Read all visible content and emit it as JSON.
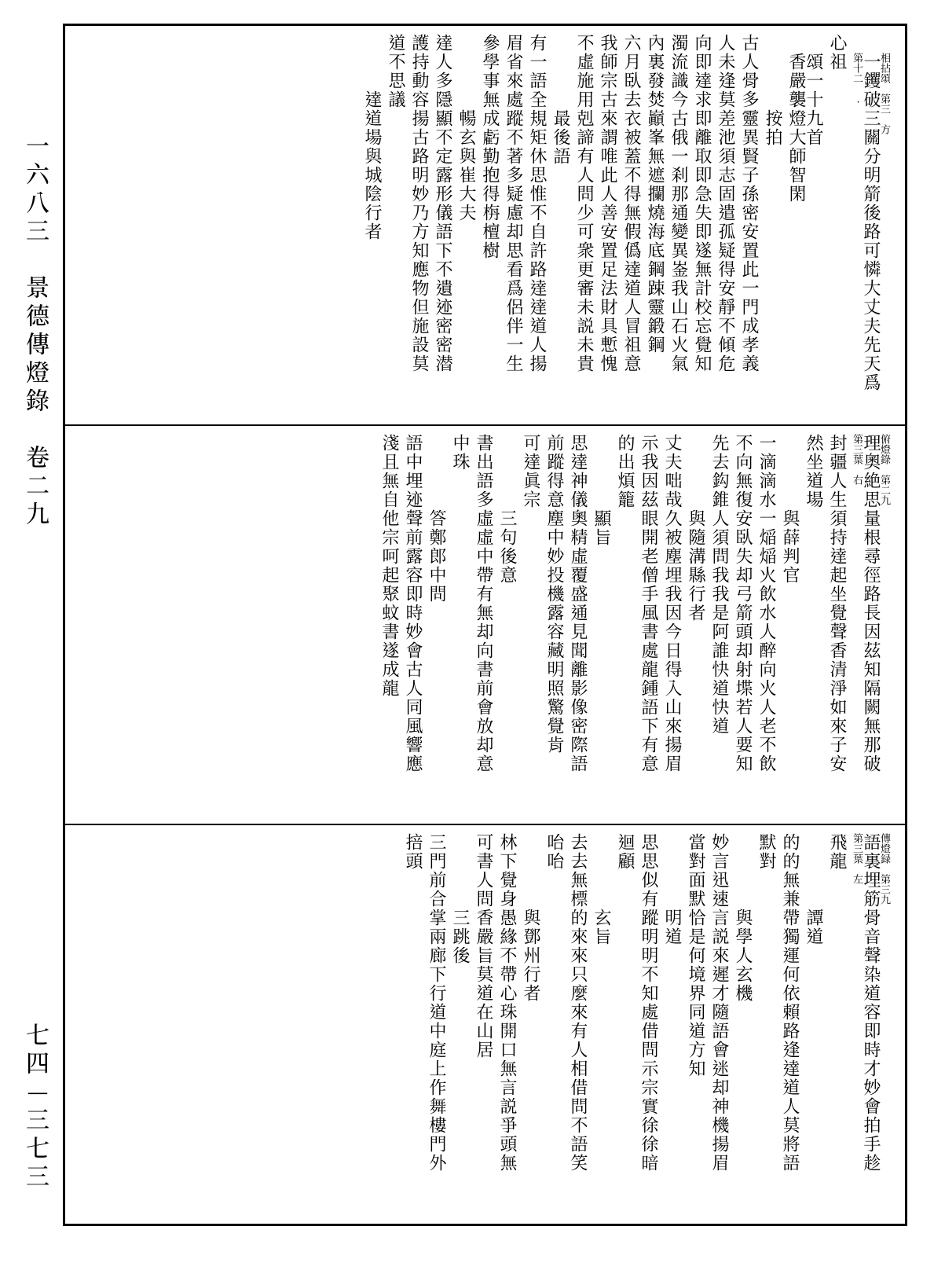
{
  "spine": {
    "top": "一六八三　景德傳燈錄　卷二九",
    "bottom": "七四—三七三"
  },
  "panels": [
    {
      "columns": [
        {
          "cls": "body",
          "pad": 24,
          "text": "一钁破三關分明箭後路可憐大丈夫先天爲",
          "notes_before": "相拈頌　第三　方",
          "notes_after": "第十二　."
        },
        {
          "cls": "body",
          "pad": 0,
          "text": "心祖"
        },
        {
          "cls": "body",
          "pad": 24,
          "text": "頌一十九首　　香嚴襲燈大師智閑"
        },
        {
          "cls": "heading",
          "pad": 96,
          "text": "按拍"
        },
        {
          "cls": "body",
          "pad": 0,
          "text": "古人骨多靈異賢子孫密安置此一門成孝義"
        },
        {
          "cls": "body",
          "pad": 0,
          "text": "人未逢莫差池須志固遣孤疑得安靜不傾危"
        },
        {
          "cls": "body",
          "pad": 0,
          "text": "向即達求即離取即急失即遂無計校忘覺知"
        },
        {
          "cls": "body",
          "pad": 0,
          "text": "濁流識今古俄一刹那通變異崟我山石火氣"
        },
        {
          "cls": "body",
          "pad": 0,
          "text": "內裏發焚巓峯無遮攔燒海底鋼踈靈鍛鋼"
        },
        {
          "cls": "body",
          "pad": 0,
          "text": "六月臥去衣被蓋不得無假僞達道人冒祖意"
        },
        {
          "cls": "body",
          "pad": 0,
          "text": "我師宗古來謂唯此人善安置足法財具慙愧"
        },
        {
          "cls": "body",
          "pad": 0,
          "text": "不虛施用剋諦有人問少可衆更審未説未貴"
        },
        {
          "cls": "heading",
          "pad": 96,
          "text": "最後語"
        },
        {
          "cls": "body",
          "pad": 0,
          "text": "有一語全規矩休思惟不自許路達達道人揚"
        },
        {
          "cls": "body",
          "pad": 0,
          "text": "眉省來處蹤不著多疑慮却思看爲侶伴一生"
        },
        {
          "cls": "body",
          "pad": 0,
          "text": "參學事無成虧勤抱得栴檀樹"
        },
        {
          "cls": "heading",
          "pad": 96,
          "text": "暢玄與崔大夫"
        },
        {
          "cls": "body",
          "pad": 0,
          "text": "達人多隱顯不定露形儀語下不遺迹密密潜"
        },
        {
          "cls": "body",
          "pad": 0,
          "text": "護持動容揚古路明妙乃方知應物但施設莫"
        },
        {
          "cls": "body",
          "pad": 0,
          "text": "道不思議"
        },
        {
          "cls": "heading",
          "pad": 72,
          "text": "達道場與城陰行者"
        }
      ]
    },
    {
      "columns": [
        {
          "cls": "body",
          "pad": 0,
          "text": "理奧絶思量根尋徑路長因茲知隔闕無那破",
          "notes_before": "俯燈錄　第二九",
          "notes_after": "第三葉　右"
        },
        {
          "cls": "body",
          "pad": 0,
          "text": "封疆人生須持達起坐覺聲香清淨如來子安"
        },
        {
          "cls": "body",
          "pad": 0,
          "text": "然坐道場"
        },
        {
          "cls": "heading",
          "pad": 96,
          "text": "與薛判官"
        },
        {
          "cls": "body",
          "pad": 0,
          "text": "一滴滴水一㷔㷔火飲水人醉向火人老不飲"
        },
        {
          "cls": "body",
          "pad": 0,
          "text": "不向無復安臥失却弓箭頭却射堞若人要知"
        },
        {
          "cls": "body",
          "pad": 0,
          "text": "先去鈎錐人須問我我是阿誰快道快道"
        },
        {
          "cls": "heading",
          "pad": 96,
          "text": "與隨溝縣行者"
        },
        {
          "cls": "body",
          "pad": 0,
          "text": "丈夫咄哉久被塵埋我因今日得入山來揚眉"
        },
        {
          "cls": "body",
          "pad": 0,
          "text": "示我因茲眼開老僧手風書處龍鍾語下有意"
        },
        {
          "cls": "body",
          "pad": 0,
          "text": "的出煩籠"
        },
        {
          "cls": "heading",
          "pad": 96,
          "text": "顯旨"
        },
        {
          "cls": "body",
          "pad": 0,
          "text": "思達神儀奧精虛覆盛通見聞離影像密際語"
        },
        {
          "cls": "body",
          "pad": 0,
          "text": "前蹤得意塵中妙投機露容藏明照驚覺肯"
        },
        {
          "cls": "body",
          "pad": 0,
          "text": "可達眞宗"
        },
        {
          "cls": "heading",
          "pad": 96,
          "text": "三句後意"
        },
        {
          "cls": "body",
          "pad": 0,
          "text": "書出語多虛虛中帶有無却向書前會放却意"
        },
        {
          "cls": "body",
          "pad": 0,
          "text": "中珠"
        },
        {
          "cls": "heading",
          "pad": 96,
          "text": "答鄭郎中問"
        },
        {
          "cls": "body",
          "pad": 0,
          "text": "語中埋迹聲前露容即時妙會古人同風響應"
        },
        {
          "cls": "body",
          "pad": 0,
          "text": "淺且無自他宗呵起聚蚊書遂成龍"
        }
      ]
    },
    {
      "columns": [
        {
          "cls": "body",
          "pad": 0,
          "text": "語裏埋筋骨音聲染道容即時才妙會拍手趁",
          "notes_before": "傳燈録　第三九",
          "notes_after": "第三葉　左"
        },
        {
          "cls": "body",
          "pad": 0,
          "text": "飛龍"
        },
        {
          "cls": "heading",
          "pad": 96,
          "text": "譚道"
        },
        {
          "cls": "body",
          "pad": 0,
          "text": "的的無兼帶獨運何依賴路逢達道人莫將語"
        },
        {
          "cls": "body",
          "pad": 0,
          "text": "默對"
        },
        {
          "cls": "heading",
          "pad": 96,
          "text": "與學人玄機"
        },
        {
          "cls": "body",
          "pad": 0,
          "text": "妙言迅速言説來遲才隨語會迷却神機揚眉"
        },
        {
          "cls": "body",
          "pad": 0,
          "text": "當對面默恰是何境界同道方知"
        },
        {
          "cls": "heading",
          "pad": 96,
          "text": "明道"
        },
        {
          "cls": "body",
          "pad": 0,
          "text": "思思似有蹤明明不知處借問示宗實徐徐暗"
        },
        {
          "cls": "body",
          "pad": 0,
          "text": "迴顧"
        },
        {
          "cls": "heading",
          "pad": 96,
          "text": "玄旨"
        },
        {
          "cls": "body",
          "pad": 0,
          "text": "去去無標的來來只麼來有人相借問不語笑"
        },
        {
          "cls": "body",
          "pad": 0,
          "text": "咍咍"
        },
        {
          "cls": "heading",
          "pad": 96,
          "text": "與鄧州行者"
        },
        {
          "cls": "body",
          "pad": 0,
          "text": "林下覺身愚緣不帶心珠開口無言説爭頭無"
        },
        {
          "cls": "body",
          "pad": 0,
          "text": "可書人問香嚴旨莫道在山居"
        },
        {
          "cls": "heading",
          "pad": 96,
          "text": "三跳後"
        },
        {
          "cls": "body",
          "pad": 0,
          "text": "三門前合掌兩廊下行道中庭上作舞樓門外"
        },
        {
          "cls": "body",
          "pad": 0,
          "text": "掊頭"
        }
      ]
    }
  ]
}
